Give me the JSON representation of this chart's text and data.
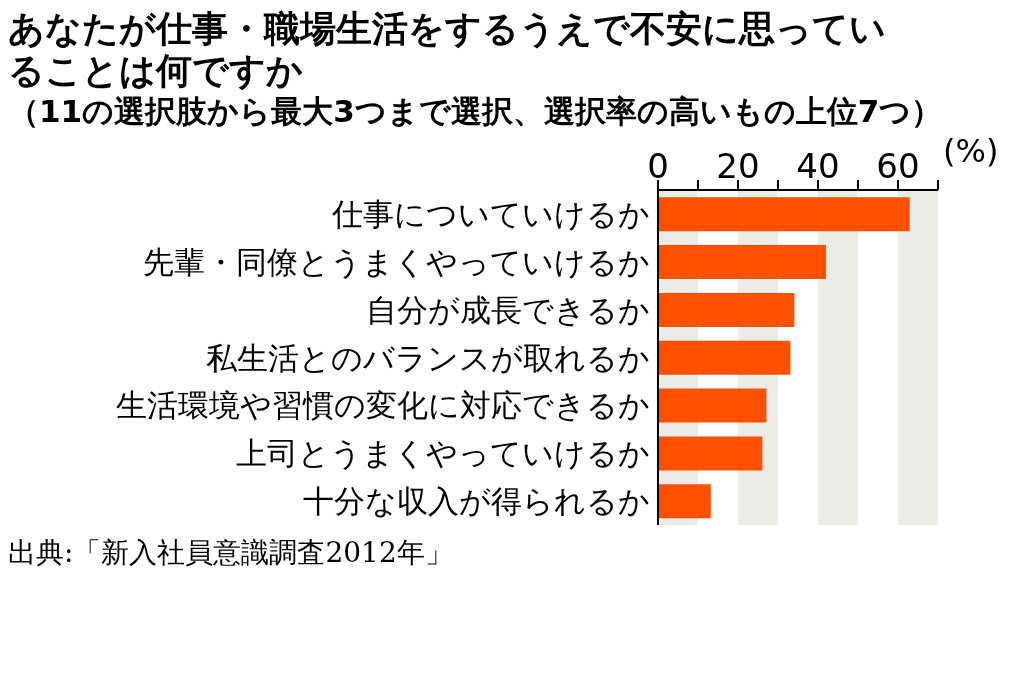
{
  "chart_data": {
    "type": "bar",
    "orientation": "horizontal",
    "title": "あなたが仕事・職場生活をするうえで不安に思っていることは何ですか",
    "subtitle": "（11の選択肢から最大3つまで選択、選択率の高いもの上位7つ）",
    "xlabel": "(%)",
    "categories": [
      "仕事についていけるか",
      "先輩・同僚とうまくやっていけるか",
      "自分が成長できるか",
      "私生活とのバランスが取れるか",
      "生活環境や習慣の変化に対応できるか",
      "上司とうまくやっていけるか",
      "十分な収入が得られるか"
    ],
    "values": [
      62.9,
      42.0,
      34.1,
      33.1,
      27.1,
      26.1,
      13.2
    ],
    "color": "#ff5000",
    "xlim": [
      0,
      70
    ],
    "xticks": [
      0,
      {
        "value": 10,
        "label": null
      },
      20,
      {
        "value": 30,
        "label": null
      },
      40,
      {
        "value": 50,
        "label": null
      },
      60,
      {
        "value": 70,
        "label": null
      }
    ],
    "bands": [
      {
        "axis": "x",
        "from": 0,
        "to": 10,
        "color": "#ecebe5"
      },
      {
        "axis": "x",
        "from": 20,
        "to": 30,
        "color": "#ecebe5"
      },
      {
        "axis": "x",
        "from": 40,
        "to": 50,
        "color": "#ecebe5"
      },
      {
        "axis": "x",
        "from": 60,
        "to": 70,
        "color": "#ecebe5"
      }
    ],
    "annotations": [
      "出典:「新入社員意識調査2012年」"
    ]
  }
}
